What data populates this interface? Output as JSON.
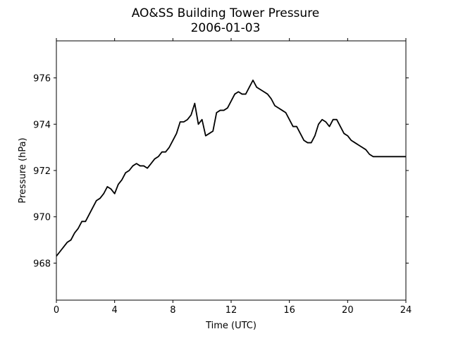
{
  "chart_data": {
    "type": "line",
    "title": "AO&SS Building Tower Pressure",
    "subtitle": "2006-01-03",
    "xlabel": "Time (UTC)",
    "ylabel": "Pressure (hPa)",
    "xlim": [
      0,
      24
    ],
    "ylim": [
      966.4,
      977.6
    ],
    "xticks": [
      0,
      4,
      8,
      12,
      16,
      20,
      24
    ],
    "xtick_labels": [
      "0",
      "4",
      "8",
      "12",
      "16",
      "20",
      "24"
    ],
    "yticks": [
      968,
      970,
      972,
      974,
      976
    ],
    "ytick_labels": [
      "968",
      "970",
      "972",
      "974",
      "976"
    ],
    "grid": false,
    "legend": "none",
    "line_color": "#000000",
    "series": [
      {
        "x": [
          0.0,
          0.25,
          0.5,
          0.75,
          1.0,
          1.25,
          1.5,
          1.75,
          2.0,
          2.25,
          2.5,
          2.75,
          3.0,
          3.25,
          3.5,
          3.75,
          4.0,
          4.25,
          4.5,
          4.75,
          5.0,
          5.25,
          5.5,
          5.75,
          6.0,
          6.25,
          6.5,
          6.75,
          7.0,
          7.25,
          7.5,
          7.75,
          8.0,
          8.25,
          8.5,
          8.75,
          9.0,
          9.25,
          9.5,
          9.75,
          10.0,
          10.25,
          10.5,
          10.75,
          11.0,
          11.25,
          11.5,
          11.75,
          12.0,
          12.25,
          12.5,
          12.75,
          13.0,
          13.25,
          13.5,
          13.75,
          14.0,
          14.25,
          14.5,
          14.75,
          15.0,
          15.25,
          15.5,
          15.75,
          16.0,
          16.25,
          16.5,
          16.75,
          17.0,
          17.25,
          17.5,
          17.75,
          18.0,
          18.25,
          18.5,
          18.75,
          19.0,
          19.25,
          19.5,
          19.75,
          20.0,
          20.25,
          20.5,
          20.75,
          21.0,
          21.25,
          21.5,
          21.75,
          22.0,
          22.25,
          22.5,
          22.75,
          23.0,
          23.25,
          23.5,
          23.75,
          24.0
        ],
        "values": [
          968.3,
          968.5,
          968.7,
          968.9,
          969.0,
          969.3,
          969.5,
          969.8,
          969.8,
          970.1,
          970.4,
          970.7,
          970.8,
          971.0,
          971.3,
          971.2,
          971.0,
          971.4,
          971.6,
          971.9,
          972.0,
          972.2,
          972.3,
          972.2,
          972.2,
          972.1,
          972.3,
          972.5,
          972.6,
          972.8,
          972.8,
          973.0,
          973.3,
          973.6,
          974.1,
          974.1,
          974.2,
          974.4,
          974.9,
          974.0,
          974.2,
          973.5,
          973.6,
          973.7,
          974.5,
          974.6,
          974.6,
          974.7,
          975.0,
          975.3,
          975.4,
          975.3,
          975.3,
          975.6,
          975.9,
          975.6,
          975.5,
          975.4,
          975.3,
          975.1,
          974.8,
          974.7,
          974.6,
          974.5,
          974.2,
          973.9,
          973.9,
          973.6,
          973.3,
          973.2,
          973.2,
          973.5,
          974.0,
          974.2,
          974.1,
          973.9,
          974.2,
          974.2,
          973.9,
          973.6,
          973.5,
          973.3,
          973.2,
          973.1,
          973.0,
          972.9,
          972.7,
          972.6,
          972.6,
          972.6,
          972.6,
          972.6,
          972.6,
          972.6,
          972.6,
          972.6,
          972.6
        ]
      }
    ]
  }
}
